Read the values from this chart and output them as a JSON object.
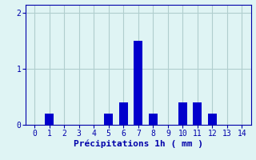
{
  "categories": [
    0,
    1,
    2,
    3,
    4,
    5,
    6,
    7,
    8,
    9,
    10,
    11,
    12,
    13,
    14
  ],
  "values": [
    0,
    0.2,
    0,
    0,
    0,
    0.2,
    0.4,
    1.5,
    0.2,
    0,
    0.4,
    0.4,
    0.2,
    0,
    0
  ],
  "bar_color": "#0000cc",
  "bg_color": "#dff4f4",
  "grid_color": "#b0cece",
  "text_color": "#0000aa",
  "xlabel": "Précipitations 1h ( mm )",
  "yticks": [
    0,
    1,
    2
  ],
  "xlim": [
    -0.6,
    14.6
  ],
  "ylim": [
    0,
    2.15
  ],
  "bar_width": 0.6,
  "xlabel_fontsize": 8,
  "tick_fontsize": 7
}
